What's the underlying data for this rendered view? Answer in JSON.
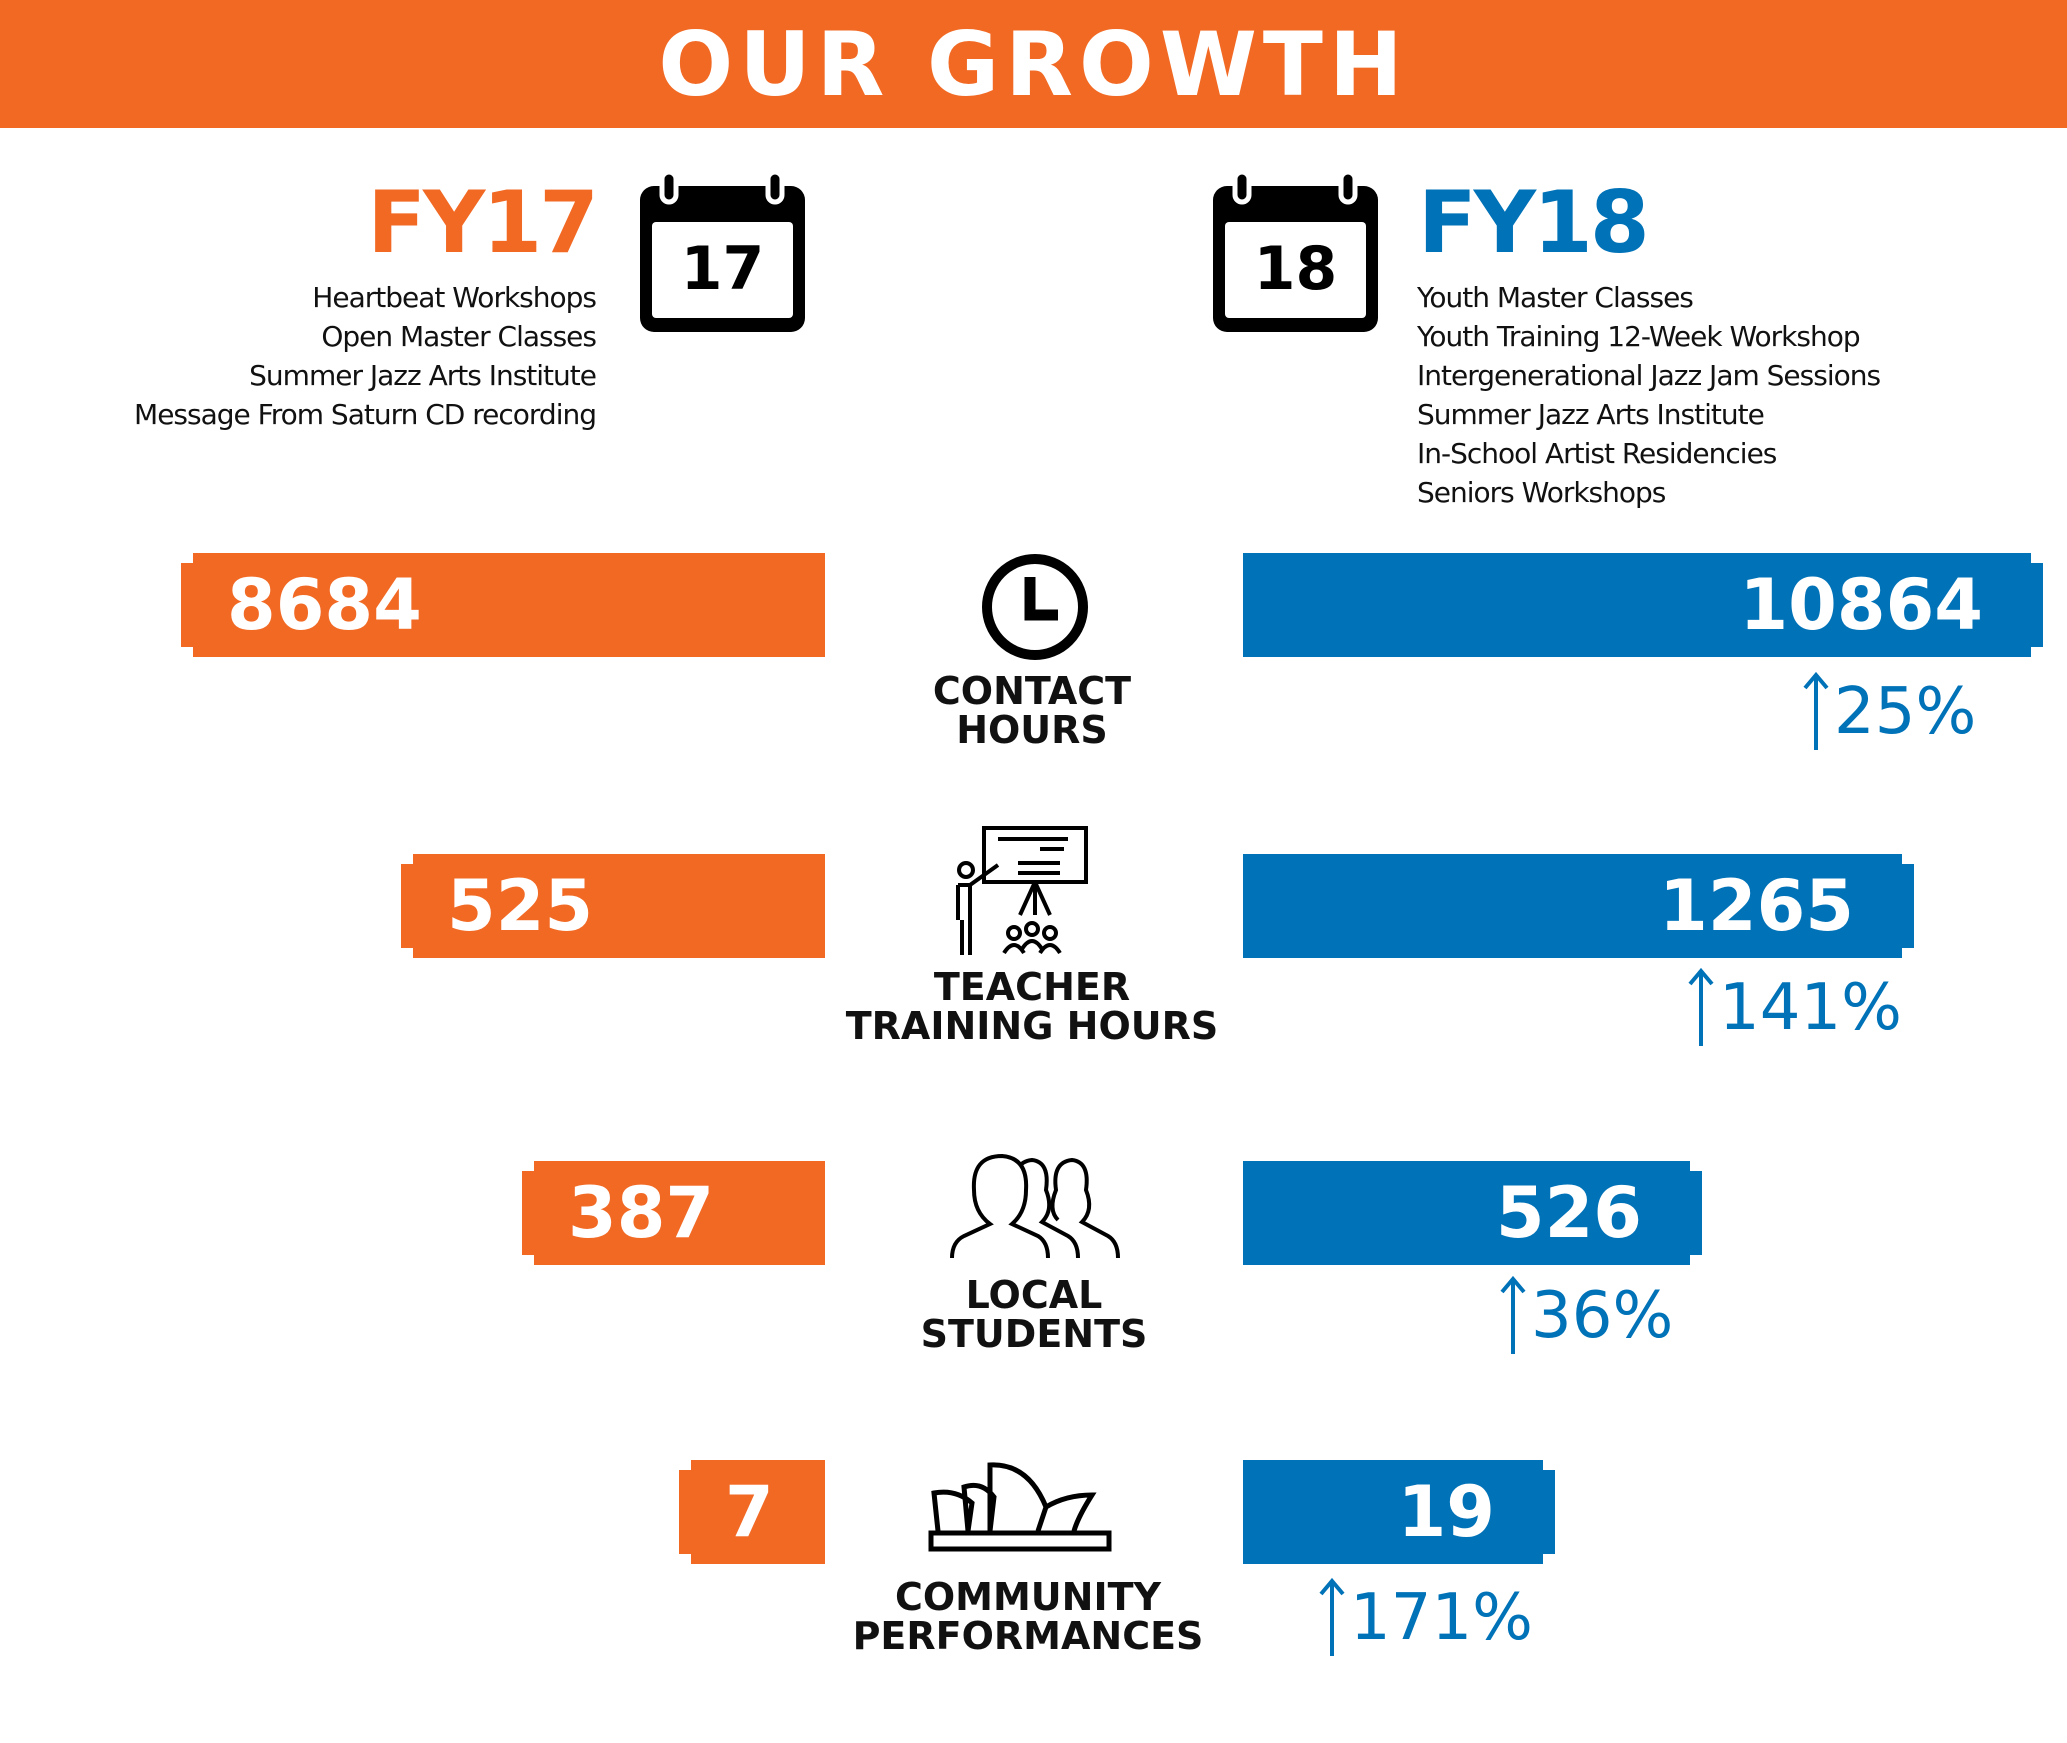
{
  "header": {
    "title": "OUR GROWTH"
  },
  "colors": {
    "fy17": "#f26924",
    "fy18": "#0072b8"
  },
  "fy17": {
    "label": "FY17",
    "calendar_number": "17",
    "programs": [
      "Heartbeat Workshops",
      "Open Master Classes",
      "Summer Jazz Arts Institute",
      "Message From Saturn CD recording"
    ]
  },
  "fy18": {
    "label": "FY18",
    "calendar_number": "18",
    "programs": [
      "Youth Master Classes",
      "Youth Training 12-Week Workshop",
      "Intergenerational Jazz Jam Sessions",
      "Summer Jazz Arts Institute",
      "In-School Artist Residencies",
      "Seniors Workshops"
    ]
  },
  "metrics": [
    {
      "label_line1": "CONTACT",
      "label_line2": "HOURS",
      "icon": "clock-icon",
      "fy17": "8684",
      "fy18": "10864",
      "change": "25%"
    },
    {
      "label_line1": "TEACHER",
      "label_line2": "TRAINING HOURS",
      "icon": "teacher-presentation-icon",
      "fy17": "525",
      "fy18": "1265",
      "change": "141%"
    },
    {
      "label_line1": "LOCAL",
      "label_line2": "STUDENTS",
      "icon": "students-icon",
      "fy17": "387",
      "fy18": "526",
      "change": "36%"
    },
    {
      "label_line1": "COMMUNITY",
      "label_line2": "PERFORMANCES",
      "icon": "opera-house-icon",
      "fy17": "7",
      "fy18": "19",
      "change": "171%"
    }
  ]
}
